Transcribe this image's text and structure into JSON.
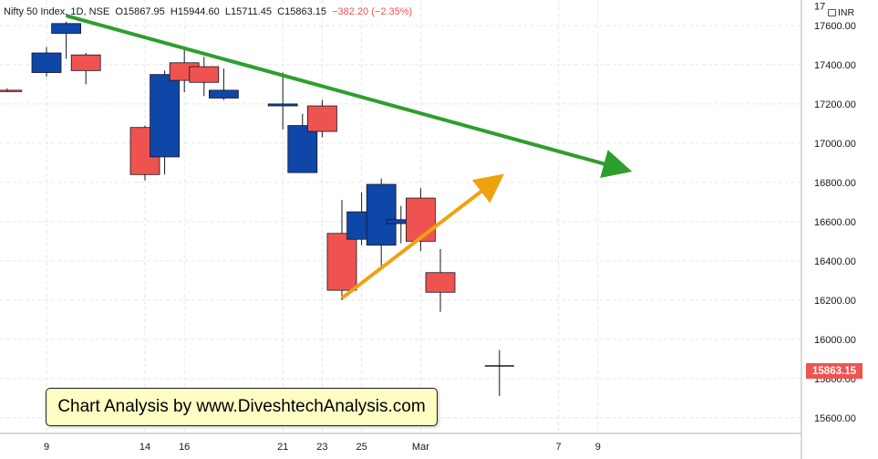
{
  "header": {
    "symbol": "Nifty 50 Index",
    "interval": "1D",
    "exchange": "NSE",
    "open": "O15867.95",
    "high": "H15944.60",
    "low": "L15711.45",
    "close": "C15863.15",
    "change": "−382.20 (−2.35%)"
  },
  "axis": {
    "currency": "INR",
    "last_price_label": "15863.15"
  },
  "banner_text": "Chart Analysis by www.DiveshtechAnalysis.com",
  "colors": {
    "up": "#0f47a8",
    "down": "#ef5350",
    "downtrend": "#2e9e2e",
    "uptrend": "#f0a20e",
    "grid": "#e6e6e6"
  },
  "chart_data": {
    "type": "candlestick",
    "ylim": [
      15520,
      17730
    ],
    "y_ticks": [
      15600,
      15800,
      16000,
      16200,
      16400,
      16600,
      16800,
      17000,
      17200,
      17400,
      17600
    ],
    "x_ticks": [
      {
        "label": "9",
        "day": 9
      },
      {
        "label": "14",
        "day": 14
      },
      {
        "label": "16",
        "day": 16
      },
      {
        "label": "21",
        "day": 21
      },
      {
        "label": "23",
        "day": 23
      },
      {
        "label": "25",
        "day": 25
      },
      {
        "label": "Mar",
        "day": 28
      },
      {
        "label": "7",
        "day": 35
      },
      {
        "label": "9",
        "day": 37
      }
    ],
    "candles": [
      {
        "day": 7,
        "open": 17270,
        "high": 17280,
        "low": 17260,
        "close": 17265
      },
      {
        "day": 9,
        "open": 17360,
        "high": 17490,
        "low": 17340,
        "close": 17460
      },
      {
        "day": 10,
        "open": 17560,
        "high": 17620,
        "low": 17430,
        "close": 17610
      },
      {
        "day": 11,
        "open": 17450,
        "high": 17460,
        "low": 17300,
        "close": 17370
      },
      {
        "day": 14,
        "open": 17080,
        "high": 17090,
        "low": 16810,
        "close": 16840
      },
      {
        "day": 15,
        "open": 16930,
        "high": 17370,
        "low": 16840,
        "close": 17350
      },
      {
        "day": 16,
        "open": 17410,
        "high": 17480,
        "low": 17260,
        "close": 17320
      },
      {
        "day": 17,
        "open": 17390,
        "high": 17440,
        "low": 17240,
        "close": 17310
      },
      {
        "day": 18,
        "open": 17230,
        "high": 17380,
        "low": 17220,
        "close": 17270
      },
      {
        "day": 21,
        "open": 17190,
        "high": 17360,
        "low": 17070,
        "close": 17200
      },
      {
        "day": 22,
        "open": 16850,
        "high": 17150,
        "low": 16850,
        "close": 17090
      },
      {
        "day": 23,
        "open": 17190,
        "high": 17220,
        "low": 17030,
        "close": 17060
      },
      {
        "day": 24,
        "open": 16540,
        "high": 16710,
        "low": 16200,
        "close": 16250
      },
      {
        "day": 25,
        "open": 16510,
        "high": 16750,
        "low": 16480,
        "close": 16650
      },
      {
        "day": 26,
        "open": 16480,
        "high": 16820,
        "low": 16360,
        "close": 16790
      },
      {
        "day": 27,
        "open": 16590,
        "high": 16680,
        "low": 16490,
        "close": 16610
      },
      {
        "day": 28,
        "open": 16720,
        "high": 16770,
        "low": 16450,
        "close": 16500
      },
      {
        "day": 29,
        "open": 16340,
        "high": 16460,
        "low": 16140,
        "close": 16240
      },
      {
        "day": 32,
        "open": 15868,
        "high": 15945,
        "low": 15711,
        "close": 15863
      }
    ],
    "trendlines": [
      {
        "name": "downtrend",
        "from": {
          "day": 10,
          "price": 17650
        },
        "to": {
          "day": 38.2,
          "price": 16870
        }
      },
      {
        "name": "uptrend",
        "from": {
          "day": 24,
          "price": 16210
        },
        "to": {
          "day": 31.8,
          "price": 16810
        }
      }
    ],
    "grid": true
  }
}
